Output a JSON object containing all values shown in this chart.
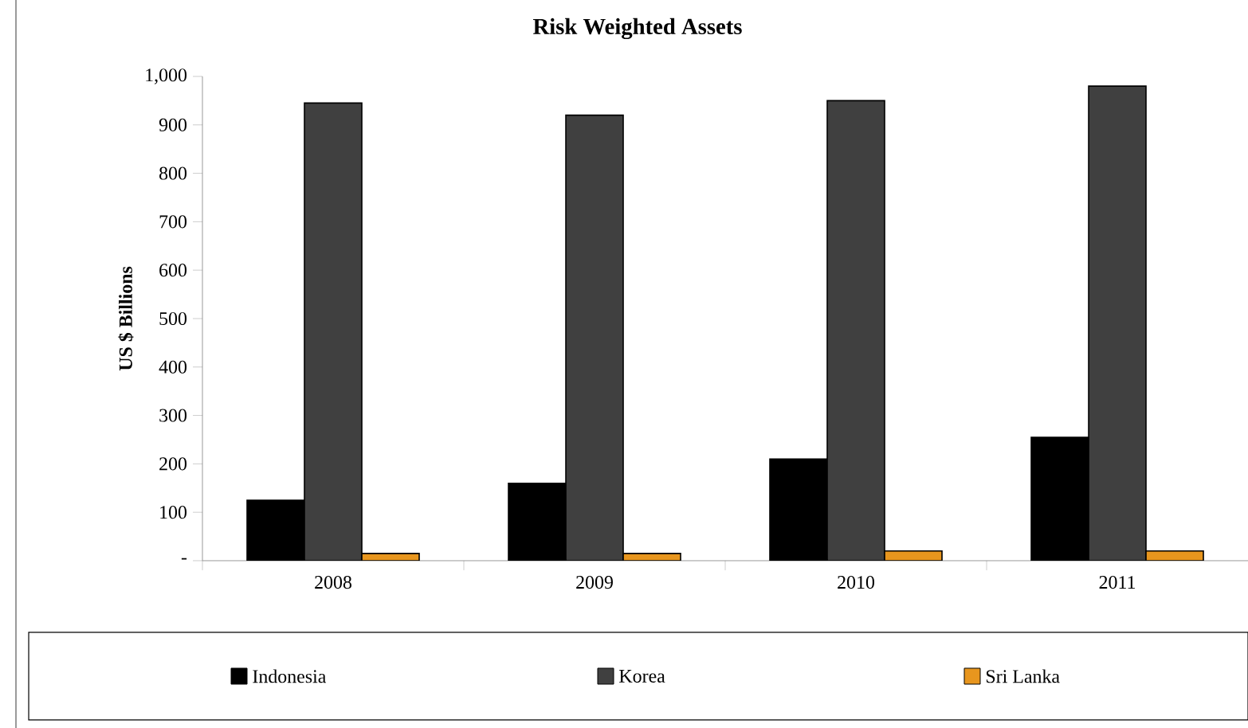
{
  "chart_data": {
    "type": "bar",
    "title": "Risk Weighted Assets",
    "ylabel": "US $ Billions",
    "categories": [
      "2008",
      "2009",
      "2010",
      "2011"
    ],
    "series": [
      {
        "name": "Indonesia",
        "color": "#000000",
        "values": [
          125,
          160,
          210,
          255
        ]
      },
      {
        "name": "Korea",
        "color": "#404040",
        "values": [
          945,
          920,
          950,
          980
        ]
      },
      {
        "name": "Sri Lanka",
        "color": "#e8961e",
        "values": [
          15,
          15,
          20,
          20
        ]
      }
    ],
    "ylim": [
      0,
      1000
    ],
    "yticks": [
      {
        "value": 0,
        "label": "-"
      },
      100,
      200,
      300,
      400,
      500,
      600,
      700,
      800,
      900,
      {
        "value": 1000,
        "label": "1,000"
      }
    ],
    "legend": "bottom",
    "grid": false
  }
}
